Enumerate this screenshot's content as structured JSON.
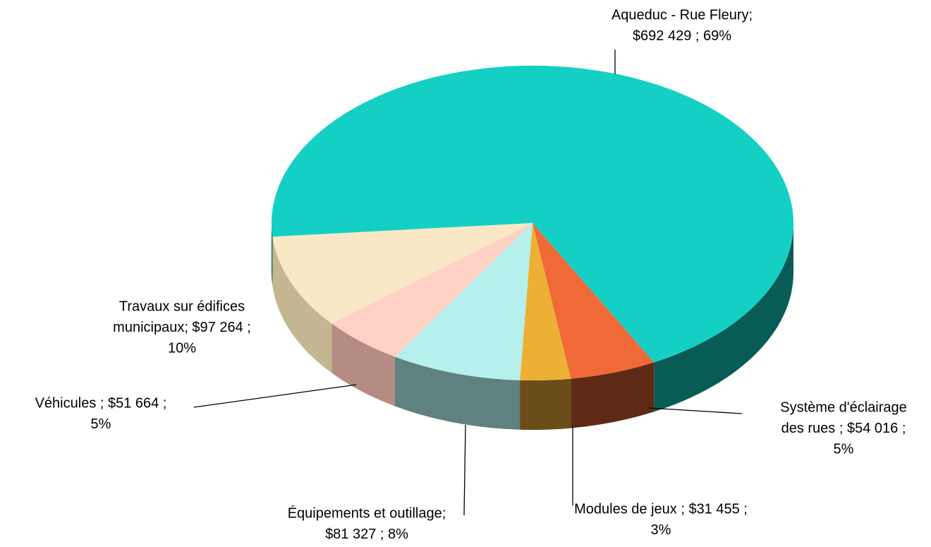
{
  "chart_data": {
    "type": "pie3d",
    "values": [
      692429,
      54016,
      31455,
      81327,
      51664,
      97264
    ],
    "value_labels": [
      [
        "Aqueduc - Rue Fleury;",
        "$692 429 ; 69%"
      ],
      [
        "Système d'éclairage",
        "des rues ;  $54 016 ;",
        "5%"
      ],
      [
        "Modules de jeux ;  $31 455 ;",
        "3%"
      ],
      [
        "Équipements et outillage;",
        "$81 327 ; 8%"
      ],
      [
        "Véhicules ;  $51 664 ;",
        "5%"
      ],
      [
        "Travaux sur édifices",
        "municipaux;  $97 264 ;",
        "10%"
      ]
    ],
    "colors": [
      "#14d0c4",
      "#f06a38",
      "#ecb035",
      "#b6f0ec",
      "#fdd1c4",
      "#f9e7c6"
    ],
    "side_colors": [
      "#075c56",
      "#5e2a16",
      "#6a4d18",
      "#5f817f",
      "#b48c84",
      "#c4b690"
    ]
  }
}
